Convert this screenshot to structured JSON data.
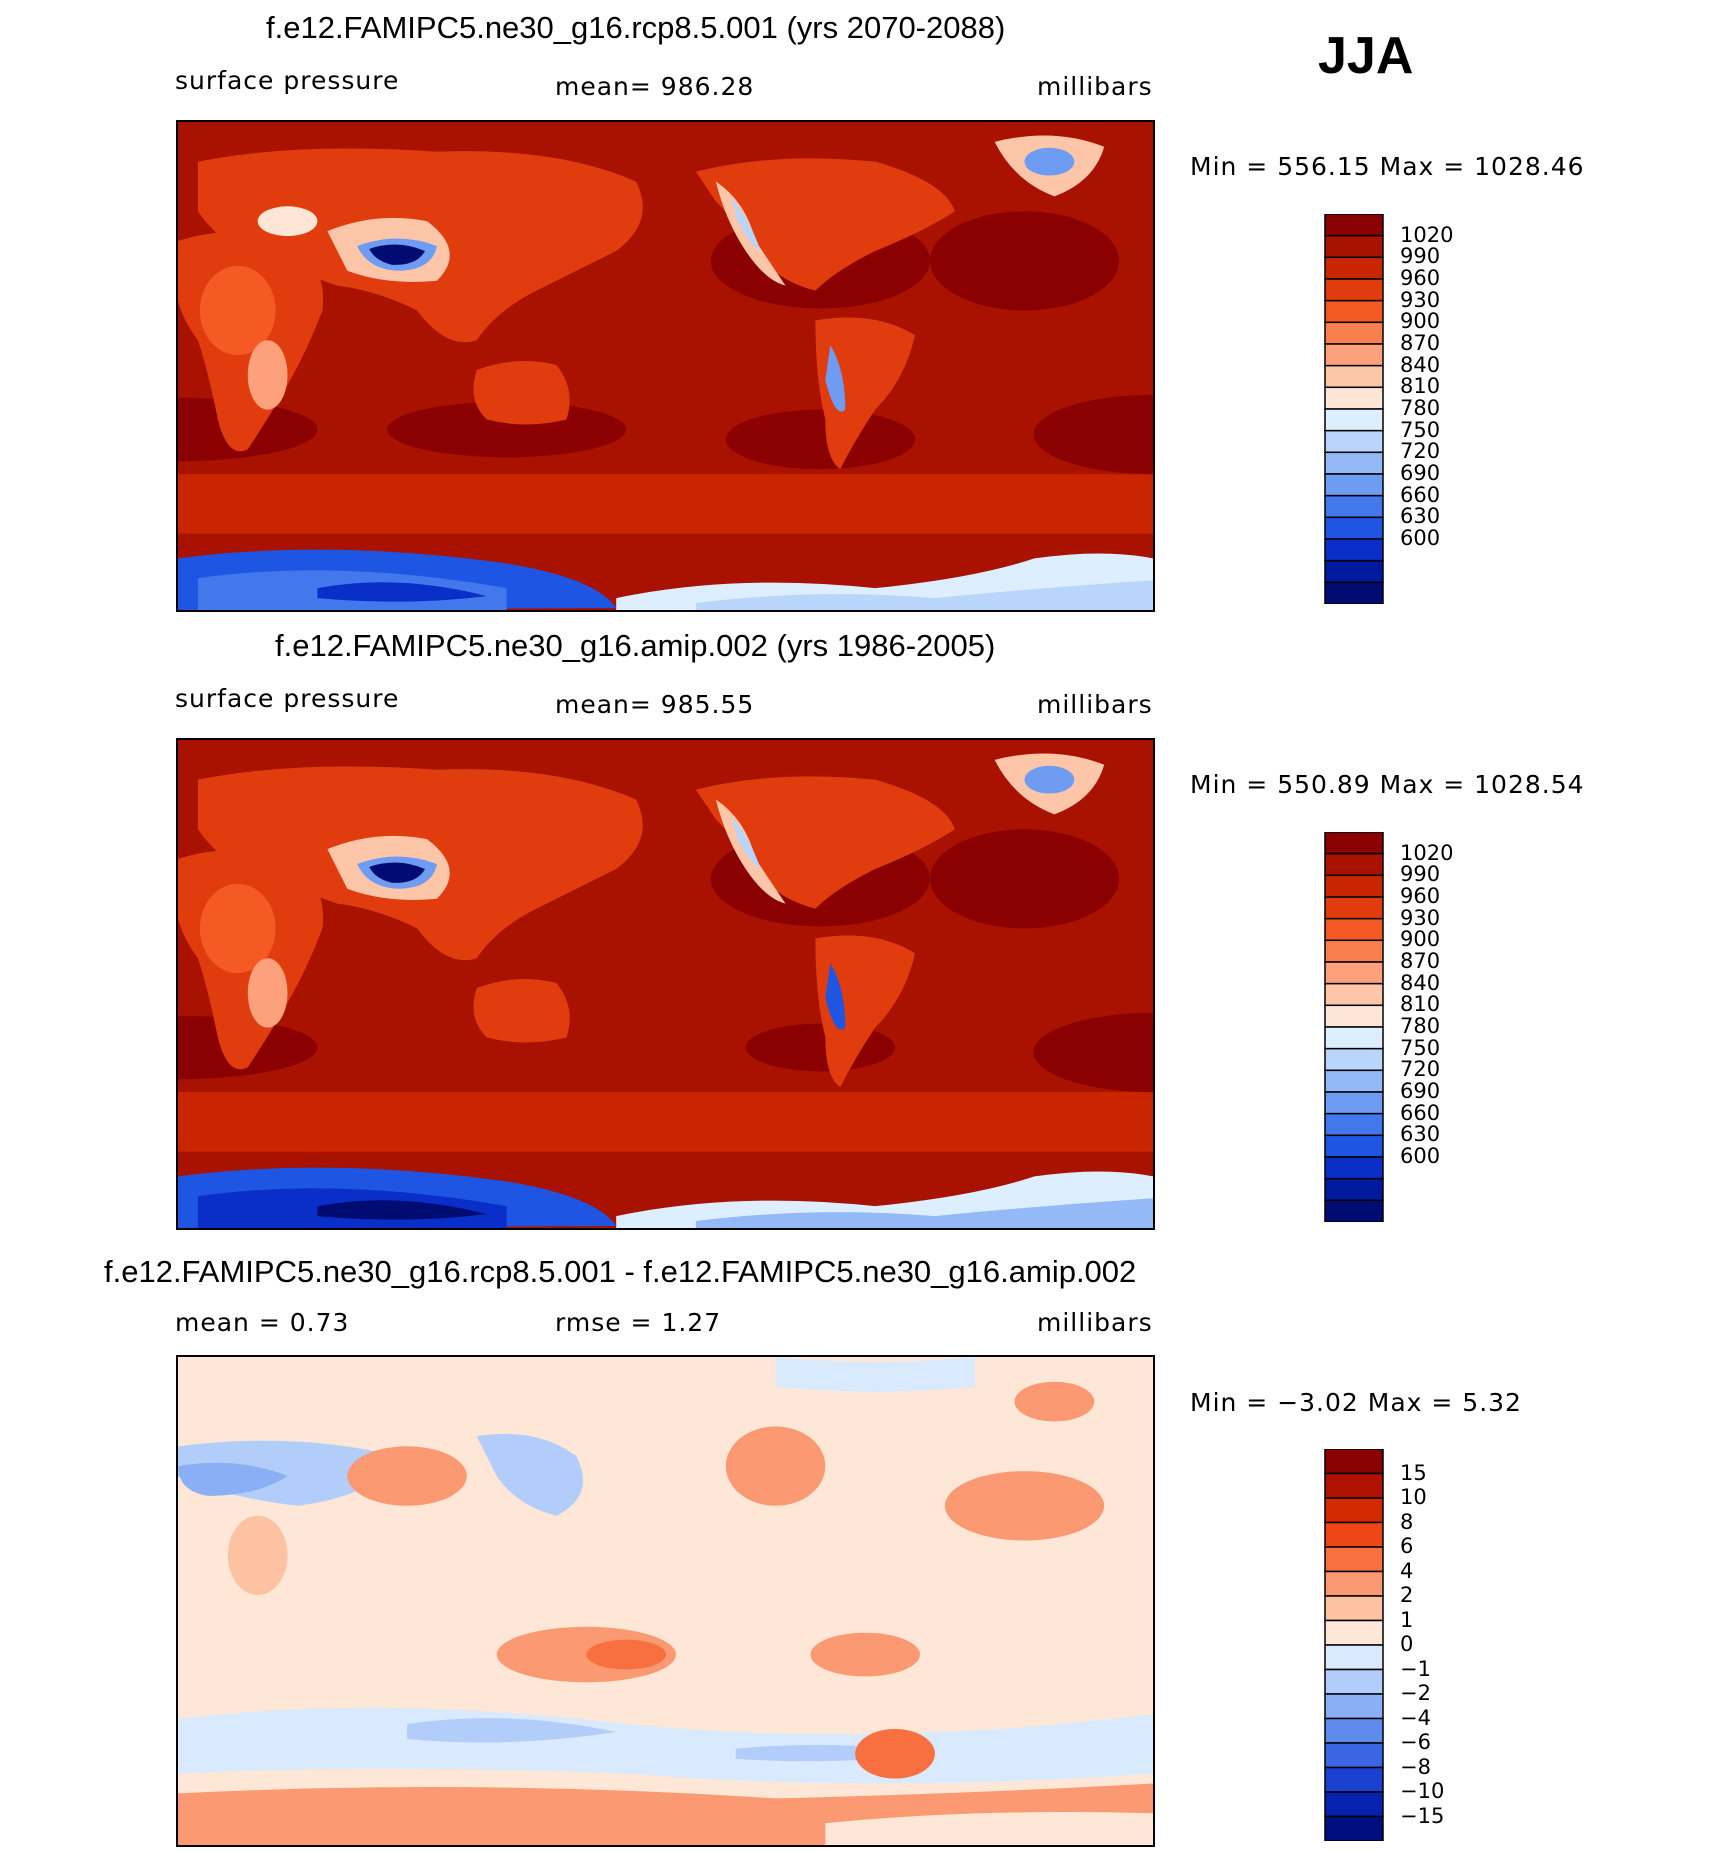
{
  "season": "JJA",
  "panels": [
    {
      "title": "f.e12.FAMIPC5.ne30_g16.rcp8.5.001 (yrs 2070-2088)",
      "left_label": "surface  pressure",
      "center_label": "mean=  986.28",
      "right_label": "millibars",
      "minmax": "Min  =  556.15  Max  =  1028.46",
      "colorbar_labels": [
        "1020",
        "990",
        "960",
        "930",
        "900",
        "870",
        "840",
        "810",
        "780",
        "750",
        "720",
        "690",
        "660",
        "630",
        "600"
      ],
      "colorbar_colors": [
        "#8b0000",
        "#a91100",
        "#c92600",
        "#e03c0e",
        "#f55a25",
        "#fa7f4e",
        "#fca17b",
        "#fdc6a8",
        "#fee6d6",
        "#ddeeff",
        "#bad5fb",
        "#94b9f7",
        "#6e9cf2",
        "#4278ec",
        "#1f55e3",
        "#0a2ec8",
        "#001a9f",
        "#000c72"
      ]
    },
    {
      "title": "f.e12.FAMIPC5.ne30_g16.amip.002 (yrs 1986-2005)",
      "left_label": "surface  pressure",
      "center_label": "mean=  985.55",
      "right_label": "millibars",
      "minmax": "Min  =  550.89  Max  =  1028.54",
      "colorbar_labels": [
        "1020",
        "990",
        "960",
        "930",
        "900",
        "870",
        "840",
        "810",
        "780",
        "750",
        "720",
        "690",
        "660",
        "630",
        "600"
      ],
      "colorbar_colors": [
        "#8b0000",
        "#a91100",
        "#c92600",
        "#e03c0e",
        "#f55a25",
        "#fa7f4e",
        "#fca17b",
        "#fdc6a8",
        "#fee6d6",
        "#ddeeff",
        "#bad5fb",
        "#94b9f7",
        "#6e9cf2",
        "#4278ec",
        "#1f55e3",
        "#0a2ec8",
        "#001a9f",
        "#000c72"
      ]
    },
    {
      "title": "f.e12.FAMIPC5.ne30_g16.rcp8.5.001 - f.e12.FAMIPC5.ne30_g16.amip.002",
      "left_label": "mean  =     0.73",
      "center_label": "rmse  =     1.27",
      "right_label": "millibars",
      "minmax": "Min  =    −3.02  Max  =     5.32",
      "colorbar_labels": [
        "15",
        "10",
        "8",
        "6",
        "4",
        "2",
        "1",
        "0",
        "−1",
        "−2",
        "−4",
        "−6",
        "−8",
        "−10",
        "−15"
      ],
      "colorbar_colors": [
        "#8b0000",
        "#b01200",
        "#d22a00",
        "#ee4715",
        "#f87040",
        "#fb9a72",
        "#fdc2a2",
        "#fee7d6",
        "#d9eaff",
        "#b3cdfa",
        "#8aaff4",
        "#5f8bed",
        "#3a66e4",
        "#1a40d2",
        "#0822b0",
        "#000f80"
      ]
    }
  ],
  "palette": {
    "ocean_high": "#8b0000",
    "ocean_mid": "#a91100",
    "ocean_low": "#c92600",
    "land_a": "#e03c0e",
    "land_b": "#f55a25",
    "land_c": "#fa7f4e",
    "land_d": "#fdc6a8",
    "blue_a": "#6e9cf2",
    "blue_b": "#1f55e3",
    "blue_c": "#000c72",
    "diff_base": "#fee7d6",
    "diff_pos": "#fb9a72",
    "diff_pos2": "#f87040",
    "diff_neg": "#d9eaff",
    "diff_neg2": "#b3cdfa",
    "diff_neg3": "#8aaff4"
  }
}
